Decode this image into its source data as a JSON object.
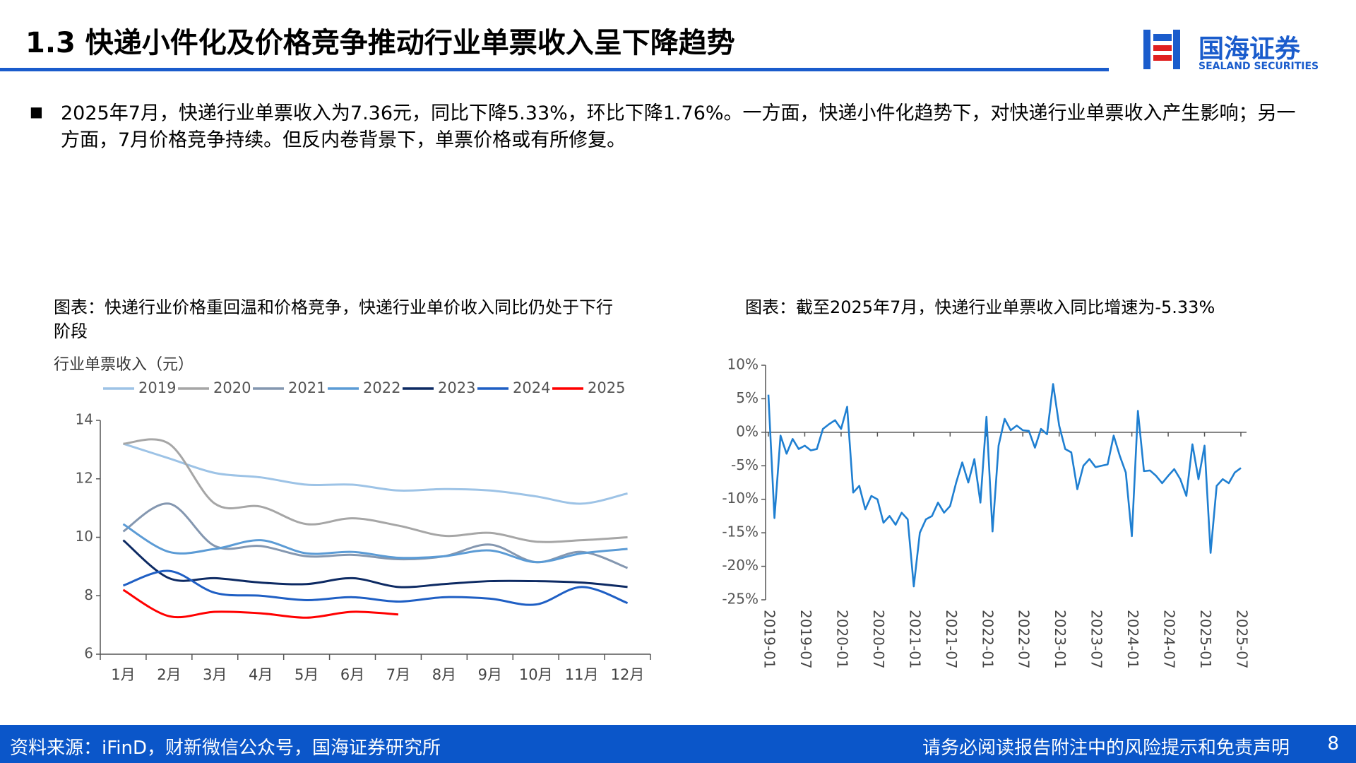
{
  "header": {
    "title": "1.3 快递小件化及价格竞争推动行业单票收入呈下降趋势",
    "logo_name": "国海证券",
    "logo_en": "SEALAND SECURITIES"
  },
  "bullet": "2025年7月，快递行业单票收入为7.36元，同比下降5.33%，环比下降1.76%。一方面，快递小件化趋势下，对快递行业单票收入产生影响；另一方面，7月价格竞争持续。但反内卷背景下，单票价格或有所修复。",
  "footer": {
    "source": "资料来源：iFinD，财新微信公众号，国海证券研究所",
    "disclaimer": "请务必阅读报告附注中的风险提示和免责声明",
    "page": "8"
  },
  "chart_data": [
    {
      "type": "line",
      "title": "图表：快递行业价格重回温和价格竞争，快递行业单价收入同比仍处于下行阶段",
      "y_label": "行业单票收入（元）",
      "smooth": true,
      "categories": [
        "1月",
        "2月",
        "3月",
        "4月",
        "5月",
        "6月",
        "7月",
        "8月",
        "9月",
        "10月",
        "11月",
        "12月"
      ],
      "series": [
        {
          "name": "2019",
          "color": "#9dc3e6",
          "values": [
            13.2,
            12.7,
            12.2,
            12.05,
            11.8,
            11.8,
            11.6,
            11.65,
            11.6,
            11.4,
            11.15,
            11.5
          ]
        },
        {
          "name": "2020",
          "color": "#a6a6a6",
          "values": [
            13.2,
            13.2,
            11.15,
            11.05,
            10.45,
            10.65,
            10.4,
            10.05,
            10.15,
            9.85,
            9.9,
            10.0
          ]
        },
        {
          "name": "2021",
          "color": "#8497b0",
          "values": [
            10.2,
            11.15,
            9.7,
            9.7,
            9.35,
            9.4,
            9.25,
            9.35,
            9.75,
            9.15,
            9.5,
            8.95
          ]
        },
        {
          "name": "2022",
          "color": "#5b9bd5",
          "values": [
            10.45,
            9.5,
            9.6,
            9.9,
            9.45,
            9.5,
            9.3,
            9.35,
            9.55,
            9.15,
            9.45,
            9.6
          ]
        },
        {
          "name": "2023",
          "color": "#0d2a63",
          "values": [
            9.9,
            8.6,
            8.6,
            8.45,
            8.4,
            8.6,
            8.3,
            8.4,
            8.5,
            8.5,
            8.45,
            8.3
          ]
        },
        {
          "name": "2024",
          "color": "#1f5fc4",
          "values": [
            8.35,
            8.85,
            8.1,
            8.0,
            7.85,
            7.95,
            7.8,
            7.95,
            7.9,
            7.7,
            8.3,
            7.75
          ]
        },
        {
          "name": "2025",
          "color": "#ff0000",
          "values": [
            8.2,
            7.3,
            7.45,
            7.4,
            7.25,
            7.45,
            7.36,
            null,
            null,
            null,
            null,
            null
          ]
        }
      ],
      "ylim": [
        6,
        14
      ],
      "yticks": [
        6,
        8,
        10,
        12,
        14
      ],
      "legend": "top"
    },
    {
      "type": "line",
      "title": "图表：截至2025年7月，快递行业单票收入同比增速为-5.33%",
      "smooth": false,
      "x": [
        "2019-01",
        "2019-02",
        "2019-03",
        "2019-04",
        "2019-05",
        "2019-06",
        "2019-07",
        "2019-08",
        "2019-09",
        "2019-10",
        "2019-11",
        "2019-12",
        "2020-01",
        "2020-02",
        "2020-03",
        "2020-04",
        "2020-05",
        "2020-06",
        "2020-07",
        "2020-08",
        "2020-09",
        "2020-10",
        "2020-11",
        "2020-12",
        "2021-01",
        "2021-02",
        "2021-03",
        "2021-04",
        "2021-05",
        "2021-06",
        "2021-07",
        "2021-08",
        "2021-09",
        "2021-10",
        "2021-11",
        "2021-12",
        "2022-01",
        "2022-02",
        "2022-03",
        "2022-04",
        "2022-05",
        "2022-06",
        "2022-07",
        "2022-08",
        "2022-09",
        "2022-10",
        "2022-11",
        "2022-12",
        "2023-01",
        "2023-02",
        "2023-03",
        "2023-04",
        "2023-05",
        "2023-06",
        "2023-07",
        "2023-08",
        "2023-09",
        "2023-10",
        "2023-11",
        "2023-12",
        "2024-01",
        "2024-02",
        "2024-03",
        "2024-04",
        "2024-05",
        "2024-06",
        "2024-07",
        "2024-08",
        "2024-09",
        "2024-10",
        "2024-11",
        "2024-12",
        "2025-01",
        "2025-02",
        "2025-03",
        "2025-04",
        "2025-05",
        "2025-06",
        "2025-07"
      ],
      "series": [
        {
          "color": "#1f7fd1",
          "values": [
            5.6,
            -12.8,
            -0.5,
            -3.2,
            -1.0,
            -2.5,
            -2.0,
            -2.7,
            -2.5,
            0.5,
            1.2,
            1.8,
            0.5,
            3.8,
            -9.0,
            -8.0,
            -11.5,
            -9.5,
            -10.0,
            -13.5,
            -12.5,
            -13.8,
            -12.0,
            -13.0,
            -23.0,
            -15.0,
            -13.0,
            -12.5,
            -10.5,
            -12.0,
            -11.0,
            -7.5,
            -4.5,
            -7.5,
            -4.0,
            -10.5,
            2.3,
            -14.8,
            -2.0,
            2.0,
            0.3,
            1.0,
            0.3,
            0.2,
            -2.3,
            0.5,
            -0.3,
            7.2,
            1.0,
            -2.5,
            -3.0,
            -8.5,
            -5.0,
            -4.0,
            -5.2,
            -5.0,
            -4.8,
            -0.5,
            -3.5,
            -6.0,
            -15.5,
            3.2,
            -5.8,
            -5.7,
            -6.5,
            -7.6,
            -6.5,
            -5.5,
            -7.0,
            -9.5,
            -1.8,
            -7.0,
            -2.0,
            -18.0,
            -8.0,
            -7.0,
            -7.6,
            -6.0,
            -5.33
          ]
        }
      ],
      "xticks": [
        "2019-01",
        "2019-07",
        "2020-01",
        "2020-07",
        "2021-01",
        "2021-07",
        "2022-01",
        "2022-07",
        "2023-01",
        "2023-07",
        "2024-01",
        "2024-07",
        "2025-01",
        "2025-07"
      ],
      "ylim": [
        -25,
        10
      ],
      "yticks": [
        {
          "value": -25,
          "label": "-25%"
        },
        {
          "value": -20,
          "label": "-20%"
        },
        {
          "value": -15,
          "label": "-15%"
        },
        {
          "value": -10,
          "label": "-10%"
        },
        {
          "value": -5,
          "label": "-5%"
        },
        {
          "value": 0,
          "label": "0%"
        },
        {
          "value": 5,
          "label": "5%"
        },
        {
          "value": 10,
          "label": "10%"
        }
      ]
    }
  ]
}
